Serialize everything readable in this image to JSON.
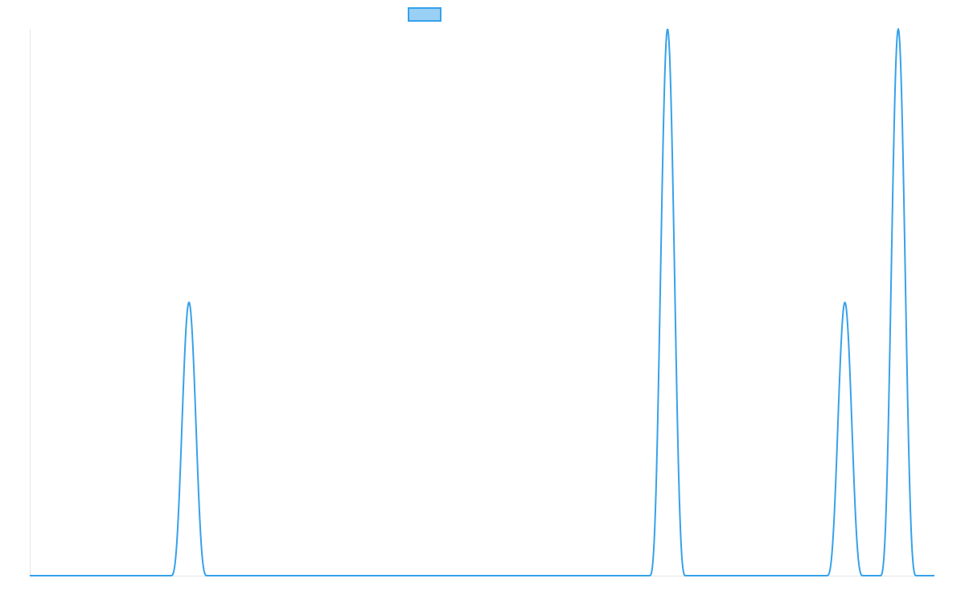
{
  "chart_data": {
    "type": "line",
    "title": "",
    "xlabel": "",
    "ylabel": "",
    "legend": {
      "position": "top",
      "show": true
    },
    "grid": false,
    "x_range": [
      0,
      100
    ],
    "ylim": [
      0,
      2
    ],
    "series": [
      {
        "color": "#36a2eb",
        "fill": "#9ad0f5",
        "peaks": [
          {
            "center": 17.6,
            "halfwidth": 2.0,
            "height": 1
          },
          {
            "center": 70.5,
            "halfwidth": 2.0,
            "height": 2
          },
          {
            "center": 90.1,
            "halfwidth": 2.0,
            "height": 1
          },
          {
            "center": 96.0,
            "halfwidth": 2.0,
            "height": 2
          }
        ]
      }
    ]
  }
}
